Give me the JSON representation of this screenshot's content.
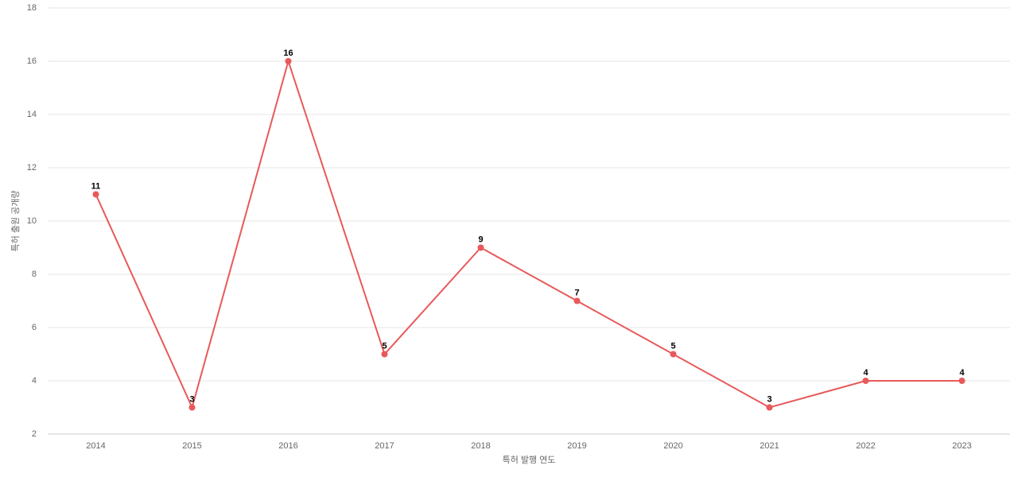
{
  "chart_data": {
    "type": "line",
    "x_label": "특허 발행 연도",
    "y_label": "특허 출원 공개량",
    "categories": [
      "2014",
      "2015",
      "2016",
      "2017",
      "2018",
      "2019",
      "2020",
      "2021",
      "2022",
      "2023"
    ],
    "series": [
      {
        "name": "특허 출원 공개량",
        "color": "#e8595a",
        "values": [
          11,
          3,
          16,
          5,
          9,
          7,
          5,
          3,
          4,
          4
        ]
      }
    ],
    "ylim": [
      2,
      18
    ],
    "yticks": [
      2,
      4,
      6,
      8,
      10,
      12,
      14,
      16,
      18
    ],
    "grid": true
  }
}
